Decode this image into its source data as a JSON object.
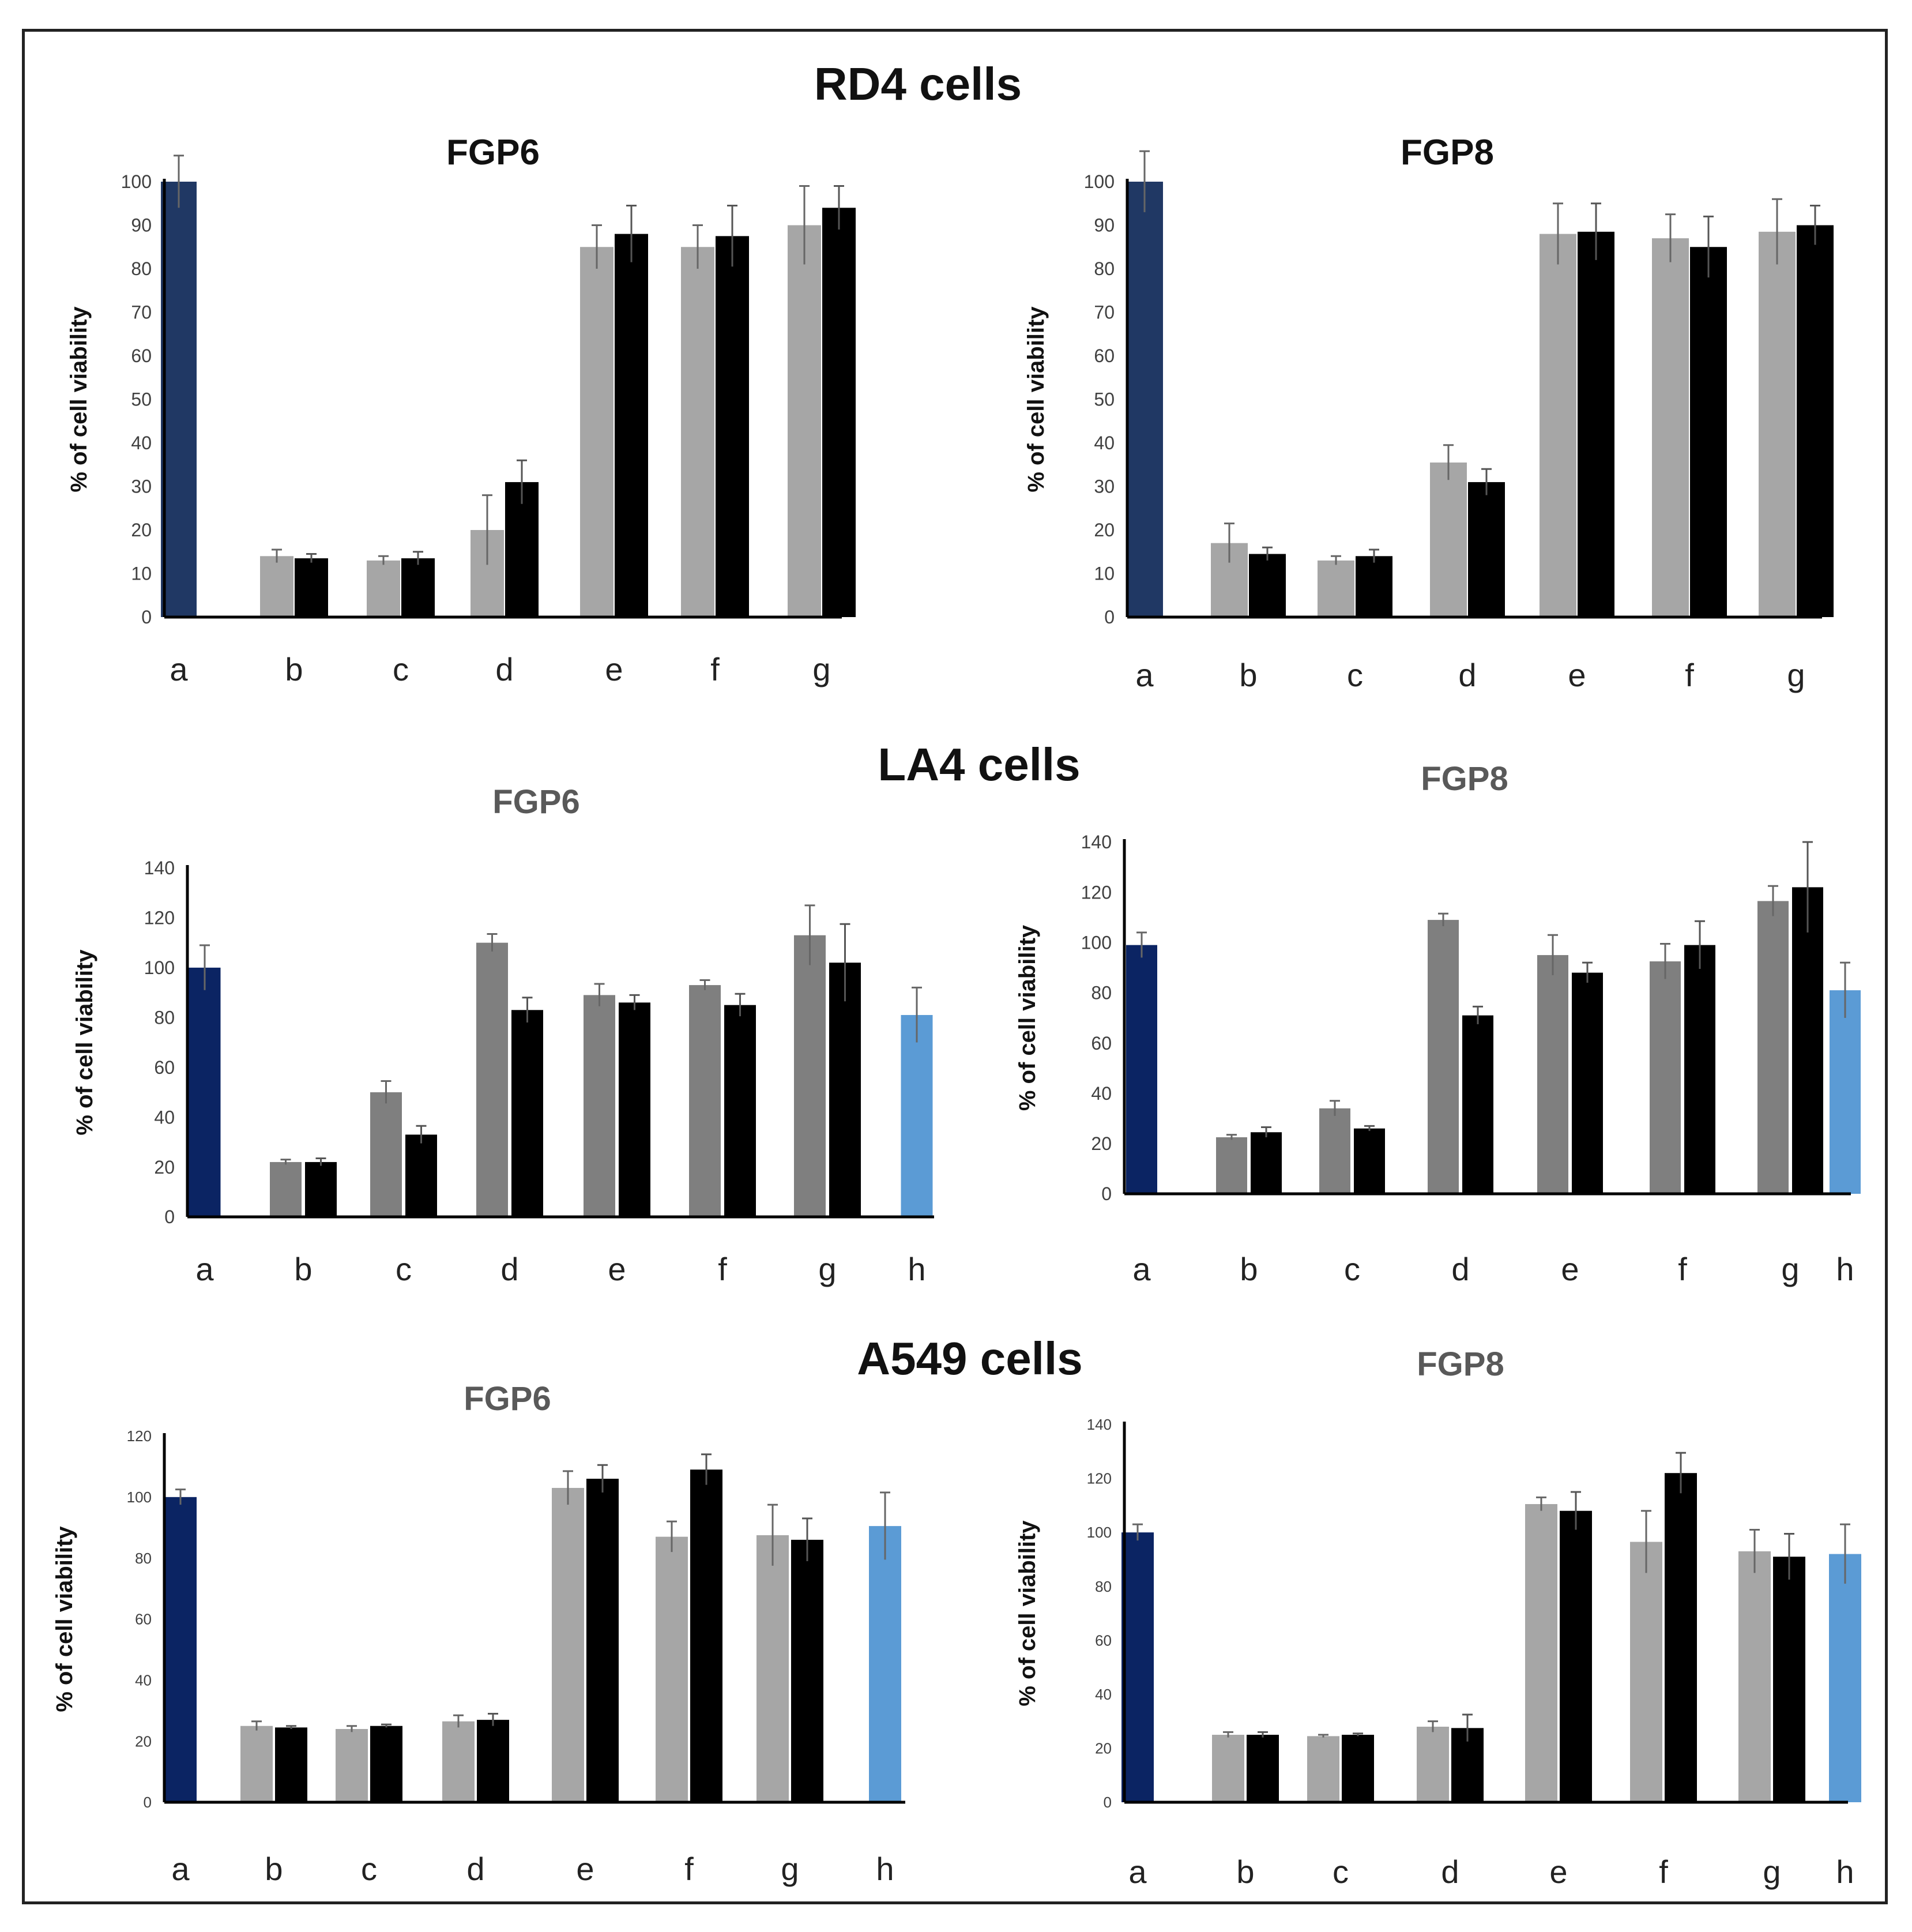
{
  "figure": {
    "group_titles": [
      "RD4 cells",
      "LA4 cells",
      "A549 cells"
    ]
  },
  "colors": {
    "control": "#203864",
    "control_dark": "#0b2463",
    "light_gray": "#a6a6a6",
    "mid_gray": "#7f7f7f",
    "black": "#000000",
    "light_blue": "#5b9bd5",
    "axis": "#000000",
    "tick_text": "#404040",
    "title_gray": "#595959"
  },
  "chart_data": [
    {
      "type": "bar",
      "group": "RD4 cells",
      "title": "FGP6",
      "title_color": "#111111",
      "ylabel": "% of cell viability",
      "ylim": [
        0,
        100
      ],
      "yticks": [
        0,
        10,
        20,
        30,
        40,
        50,
        60,
        70,
        80,
        90,
        100
      ],
      "categories": [
        "a",
        "b",
        "c",
        "d",
        "e",
        "f",
        "g"
      ],
      "series": [
        {
          "color": "#203864",
          "values": [
            100,
            null,
            null,
            null,
            null,
            null,
            null
          ],
          "errors": [
            6,
            0,
            0,
            0,
            0,
            0,
            0
          ]
        },
        {
          "color": "#a6a6a6",
          "values": [
            null,
            14,
            13,
            20,
            85,
            85,
            90
          ],
          "errors": [
            0,
            1.5,
            1,
            8,
            5,
            5,
            9
          ]
        },
        {
          "color": "#000000",
          "values": [
            null,
            13.5,
            13.5,
            31,
            88,
            87.5,
            94
          ],
          "errors": [
            0,
            1,
            1.5,
            5,
            6.5,
            7,
            5
          ]
        }
      ]
    },
    {
      "type": "bar",
      "group": "RD4 cells",
      "title": "FGP8",
      "title_color": "#111111",
      "ylabel": "% of cell viability",
      "ylim": [
        0,
        100
      ],
      "yticks": [
        0,
        10,
        20,
        30,
        40,
        50,
        60,
        70,
        80,
        90,
        100
      ],
      "categories": [
        "a",
        "b",
        "c",
        "d",
        "e",
        "f",
        "g"
      ],
      "series": [
        {
          "color": "#203864",
          "values": [
            100,
            null,
            null,
            null,
            null,
            null,
            null
          ],
          "errors": [
            7,
            0,
            0,
            0,
            0,
            0,
            0
          ]
        },
        {
          "color": "#a6a6a6",
          "values": [
            null,
            17,
            13,
            35.5,
            88,
            87,
            88.5
          ],
          "errors": [
            0,
            4.5,
            1,
            4,
            7,
            5.5,
            7.5
          ]
        },
        {
          "color": "#000000",
          "values": [
            null,
            14.5,
            14,
            31,
            88.5,
            85,
            90
          ],
          "errors": [
            0,
            1.5,
            1.5,
            3,
            6.5,
            7,
            4.5
          ]
        }
      ]
    },
    {
      "type": "bar",
      "group": "LA4 cells",
      "title": "FGP6",
      "title_color": "#595959",
      "ylabel": "% of cell viability",
      "ylim": [
        0,
        140
      ],
      "yticks": [
        0,
        20,
        40,
        60,
        80,
        100,
        120,
        140
      ],
      "categories": [
        "a",
        "b",
        "c",
        "d",
        "e",
        "f",
        "g",
        "h"
      ],
      "series": [
        {
          "color": "#0b2463",
          "values": [
            100,
            null,
            null,
            null,
            null,
            null,
            null,
            null
          ],
          "errors": [
            9,
            0,
            0,
            0,
            0,
            0,
            0,
            0
          ]
        },
        {
          "color": "#7f7f7f",
          "values": [
            null,
            22,
            50,
            110,
            89,
            93,
            113,
            null
          ],
          "errors": [
            0,
            1,
            4.5,
            3.5,
            4.5,
            2,
            12,
            0
          ]
        },
        {
          "color": "#000000",
          "values": [
            null,
            22,
            33,
            83,
            86,
            85,
            102,
            null
          ],
          "errors": [
            0,
            1.5,
            3.5,
            5,
            3,
            4.5,
            15.5,
            0
          ]
        },
        {
          "color": "#5b9bd5",
          "values": [
            null,
            null,
            null,
            null,
            null,
            null,
            null,
            81
          ],
          "errors": [
            0,
            0,
            0,
            0,
            0,
            0,
            0,
            11
          ]
        }
      ]
    },
    {
      "type": "bar",
      "group": "LA4 cells",
      "title": "FGP8",
      "title_color": "#595959",
      "ylabel": "% of cell viability",
      "ylim": [
        0,
        140
      ],
      "yticks": [
        0,
        20,
        40,
        60,
        80,
        100,
        120,
        140
      ],
      "categories": [
        "a",
        "b",
        "c",
        "d",
        "e",
        "f",
        "g",
        "h"
      ],
      "series": [
        {
          "color": "#0b2463",
          "values": [
            99,
            null,
            null,
            null,
            null,
            null,
            null,
            null
          ],
          "errors": [
            5,
            0,
            0,
            0,
            0,
            0,
            0,
            0
          ]
        },
        {
          "color": "#7f7f7f",
          "values": [
            null,
            22.5,
            34,
            109,
            95,
            92.5,
            116.5,
            null
          ],
          "errors": [
            0,
            1,
            3,
            2.5,
            8,
            7,
            6,
            0
          ]
        },
        {
          "color": "#000000",
          "values": [
            null,
            24.5,
            26,
            71,
            88,
            99,
            122,
            null
          ],
          "errors": [
            0,
            2,
            1,
            3.5,
            4,
            9.5,
            18,
            0
          ]
        },
        {
          "color": "#5b9bd5",
          "values": [
            null,
            null,
            null,
            null,
            null,
            null,
            null,
            81
          ],
          "errors": [
            0,
            0,
            0,
            0,
            0,
            0,
            0,
            11
          ]
        }
      ]
    },
    {
      "type": "bar",
      "group": "A549 cells",
      "title": "FGP6",
      "title_color": "#595959",
      "ylabel": "% of cell viability",
      "ylim": [
        0,
        120
      ],
      "yticks": [
        0,
        20,
        40,
        60,
        80,
        100,
        120
      ],
      "categories": [
        "a",
        "b",
        "c",
        "d",
        "e",
        "f",
        "g",
        "h"
      ],
      "series": [
        {
          "color": "#0b2463",
          "values": [
            100,
            null,
            null,
            null,
            null,
            null,
            null,
            null
          ],
          "errors": [
            2.5,
            0,
            0,
            0,
            0,
            0,
            0,
            0
          ]
        },
        {
          "color": "#a6a6a6",
          "values": [
            null,
            25,
            24,
            26.5,
            103,
            87,
            87.5,
            null
          ],
          "errors": [
            0,
            1.5,
            1,
            2,
            5.5,
            5,
            10,
            0
          ]
        },
        {
          "color": "#000000",
          "values": [
            null,
            24.5,
            25,
            27,
            106,
            109,
            86,
            null
          ],
          "errors": [
            0,
            0.5,
            0.5,
            2,
            4.5,
            5,
            7,
            0
          ]
        },
        {
          "color": "#5b9bd5",
          "values": [
            null,
            null,
            null,
            null,
            null,
            null,
            null,
            90.5
          ],
          "errors": [
            0,
            0,
            0,
            0,
            0,
            0,
            0,
            11
          ]
        }
      ]
    },
    {
      "type": "bar",
      "group": "A549 cells",
      "title": "FGP8",
      "title_color": "#595959",
      "ylabel": "% of cell viability",
      "ylim": [
        0,
        140
      ],
      "yticks": [
        0,
        20,
        40,
        60,
        80,
        100,
        120,
        140
      ],
      "categories": [
        "a",
        "b",
        "c",
        "d",
        "e",
        "f",
        "g",
        "h"
      ],
      "series": [
        {
          "color": "#0b2463",
          "values": [
            100,
            null,
            null,
            null,
            null,
            null,
            null,
            null
          ],
          "errors": [
            3,
            0,
            0,
            0,
            0,
            0,
            0,
            0
          ]
        },
        {
          "color": "#a6a6a6",
          "values": [
            null,
            25,
            24.5,
            28,
            110.5,
            96.5,
            93,
            null
          ],
          "errors": [
            0,
            1,
            0.5,
            2,
            2.5,
            11.5,
            8,
            0
          ]
        },
        {
          "color": "#000000",
          "values": [
            null,
            25,
            25,
            27.5,
            108,
            122,
            91,
            null
          ],
          "errors": [
            0,
            1,
            0.5,
            5,
            7,
            7.5,
            8.5,
            0
          ]
        },
        {
          "color": "#5b9bd5",
          "values": [
            null,
            null,
            null,
            null,
            null,
            null,
            null,
            92
          ],
          "errors": [
            0,
            0,
            0,
            0,
            0,
            0,
            0,
            11
          ]
        }
      ]
    }
  ]
}
